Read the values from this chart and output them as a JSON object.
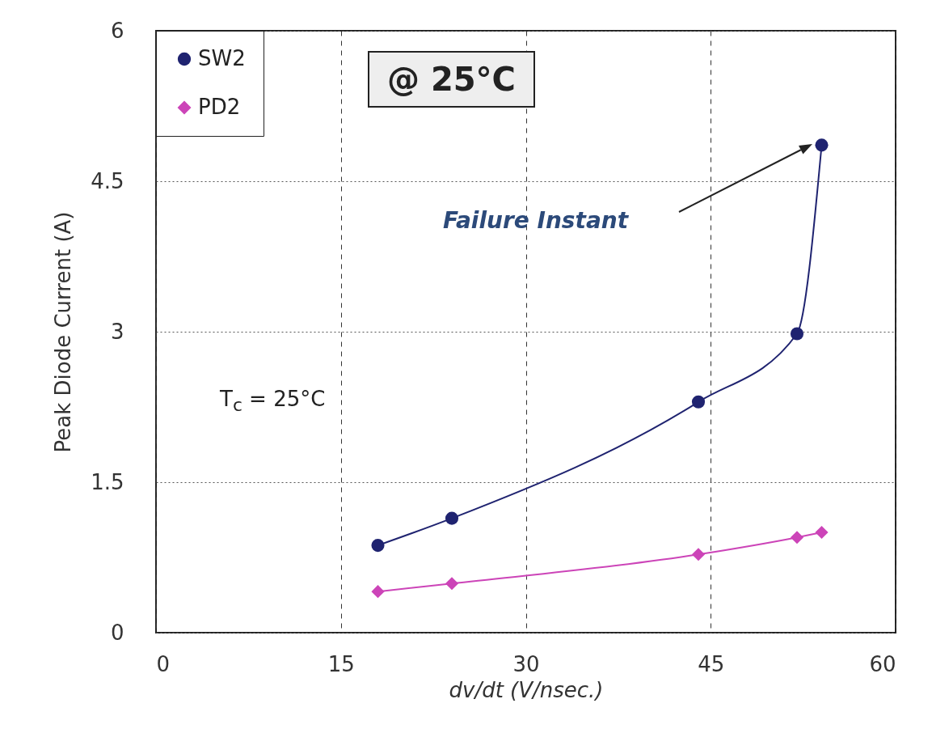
{
  "chart_data": {
    "type": "line",
    "xlabel": "dv/dt  (V/nsec.)",
    "ylabel": "Peak Diode Current (A)",
    "series": [
      {
        "name": "SW2",
        "color": "#1f2370",
        "marker": "circle",
        "x": [
          18,
          24,
          44,
          52,
          54
        ],
        "values": [
          0.87,
          1.14,
          2.3,
          2.98,
          4.86
        ]
      },
      {
        "name": "PD2",
        "color": "#cc44b8",
        "marker": "diamond",
        "x": [
          18,
          24,
          44,
          52,
          54
        ],
        "values": [
          0.41,
          0.49,
          0.78,
          0.95,
          1.0
        ]
      }
    ],
    "xlim": [
      0,
      60
    ],
    "xticks": [
      0,
      15,
      30,
      45,
      60
    ],
    "ylim": [
      0,
      6
    ],
    "yticks": [
      0,
      1.5,
      3,
      4.5,
      6
    ],
    "grid": true,
    "line_style": "solid",
    "legend": "top left",
    "annotations": [
      "@ 25°C",
      "Failure Instant",
      "T$_{c}$ = 25°C"
    ]
  }
}
